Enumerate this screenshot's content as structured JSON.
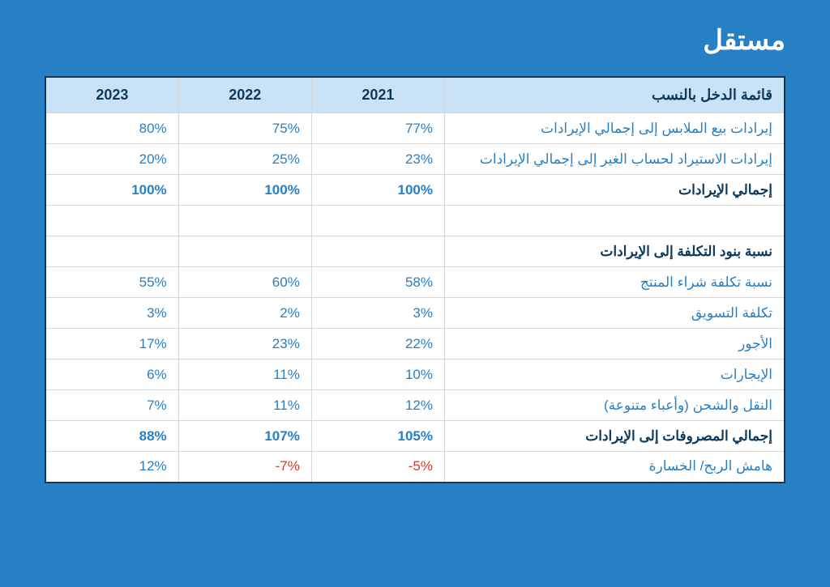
{
  "brand": {
    "logo_text": "مستقل"
  },
  "colors": {
    "page_bg": "#2780c4",
    "table_border": "#0d3a5c",
    "cell_border": "#cfd8df",
    "header_bg": "#c9e2f5",
    "header_text": "#0d3a5c",
    "label_text": "#2780c4",
    "value_text": "#2780c4",
    "bold_text": "#0d3a5c",
    "negative_text": "#d43a2e",
    "logo_color": "#ffffff"
  },
  "table": {
    "type": "table",
    "columns": [
      "قائمة الدخل بالنسب",
      "2021",
      "2022",
      "2023"
    ],
    "rows": [
      {
        "label": "إيرادات بيع الملابس إلى إجمالي الإيرادات",
        "y2021": "77%",
        "y2022": "75%",
        "y2023": "80%",
        "style": "normal"
      },
      {
        "label": "إيرادات الاستيراد لحساب الغير إلى إجمالي الإيرادات",
        "y2021": "23%",
        "y2022": "25%",
        "y2023": "20%",
        "style": "normal"
      },
      {
        "label": "إجمالي الإيرادات",
        "y2021": "100%",
        "y2022": "100%",
        "y2023": "100%",
        "style": "bold"
      },
      {
        "label": "",
        "y2021": "",
        "y2022": "",
        "y2023": "",
        "style": "blank"
      },
      {
        "label": "نسبة بنود التكلفة إلى الإيرادات",
        "y2021": "",
        "y2022": "",
        "y2023": "",
        "style": "section-header"
      },
      {
        "label": "نسبة تكلفة شراء المنتج",
        "y2021": "58%",
        "y2022": "60%",
        "y2023": "55%",
        "style": "normal"
      },
      {
        "label": "تكلفة التسويق",
        "y2021": "3%",
        "y2022": "2%",
        "y2023": "3%",
        "style": "normal"
      },
      {
        "label": "الأجور",
        "y2021": "22%",
        "y2022": "23%",
        "y2023": "17%",
        "style": "normal"
      },
      {
        "label": "الإيجارات",
        "y2021": "10%",
        "y2022": "11%",
        "y2023": "6%",
        "style": "normal"
      },
      {
        "label": "النقل والشحن (وأعباء متنوعة)",
        "y2021": "12%",
        "y2022": "11%",
        "y2023": "7%",
        "style": "normal"
      },
      {
        "label": "إجمالي المصروفات إلى الإيرادات",
        "y2021": "105%",
        "y2022": "107%",
        "y2023": "88%",
        "style": "bold"
      },
      {
        "label": "هامش الربح/ الخسارة",
        "y2021": "-5%",
        "y2022": "-7%",
        "y2023": "12%",
        "style": "normal",
        "neg": [
          "y2021",
          "y2022"
        ]
      }
    ]
  }
}
